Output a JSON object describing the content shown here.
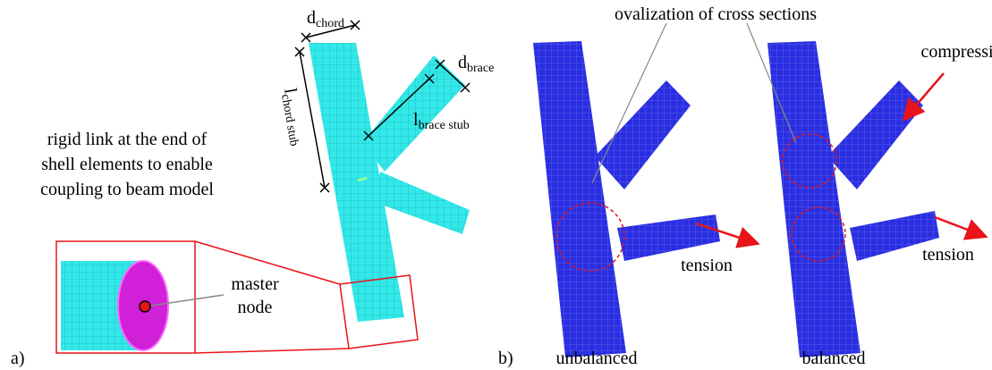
{
  "panel_a": {
    "label": "a)",
    "d_chord": {
      "base": "d",
      "sub": "chord"
    },
    "l_chord_stub": {
      "base": "l",
      "sub": "chord stub"
    },
    "d_brace": {
      "base": "d",
      "sub": "brace"
    },
    "l_brace_stub": {
      "base": "l",
      "sub": "brace stub"
    },
    "rigid_link_text": [
      "rigid link at the end of",
      "shell elements to enable",
      "coupling to beam model"
    ],
    "master_node": [
      "master",
      "node"
    ]
  },
  "panel_b": {
    "label": "b)",
    "annotation": "ovalization of cross sections",
    "unbalanced": {
      "caption": "unbalanced",
      "tension": "tension"
    },
    "balanced": {
      "caption": "balanced",
      "compression": "compression",
      "tension": "tension"
    }
  }
}
